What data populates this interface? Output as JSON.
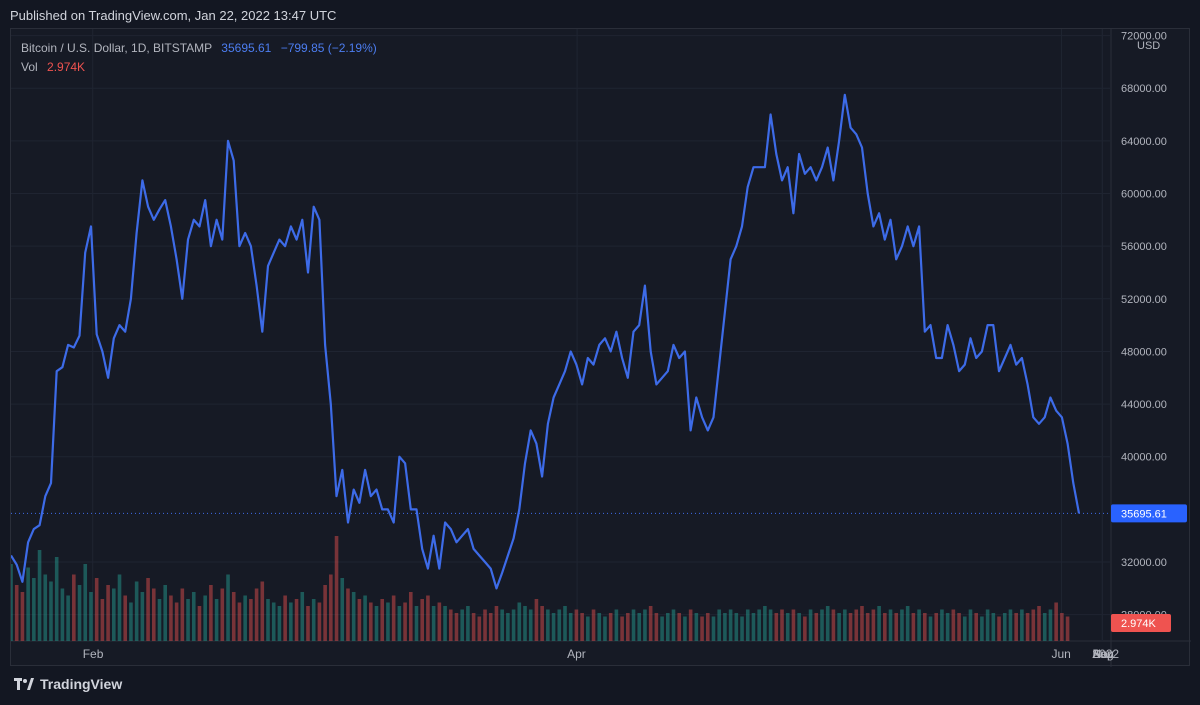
{
  "header": {
    "published": "Published on TradingView.com, Jan 22, 2022 13:47 UTC"
  },
  "legend": {
    "symbol": "Bitcoin / U.S. Dollar, 1D, BITSTAMP",
    "price": "35695.61",
    "change": "−799.85 (−2.19%)",
    "vol_label": "Vol",
    "vol_value": "2.974K"
  },
  "footer": {
    "brand": "TradingView"
  },
  "colors": {
    "line": "#3d6be8",
    "price_tag": "#2962ff",
    "vol_tag": "#ef5350",
    "vol_up": "#26a69a",
    "vol_down": "#ef5350"
  },
  "chart_data": {
    "type": "line",
    "currency": "USD",
    "x_tick_labels": [
      "Feb",
      "Apr",
      "Jun",
      "Aug",
      "Sep",
      "Nov",
      "2022"
    ],
    "y_tick_labels": [
      "72000.00",
      "68000.00",
      "64000.00",
      "60000.00",
      "56000.00",
      "52000.00",
      "48000.00",
      "44000.00",
      "40000.00",
      "32000.00",
      "28000.00"
    ],
    "ylim": [
      26000,
      72500
    ],
    "last_price": 35695.61,
    "last_price_label": "35695.61",
    "last_volume_label": "2.974K",
    "grid": true,
    "series": [
      {
        "values": [
          32500,
          31800,
          30500,
          33500,
          34500,
          34800,
          37000,
          38000,
          46500,
          46800,
          48500,
          48300,
          49200,
          55500,
          57500,
          49300,
          48000,
          46000,
          49000,
          50000,
          49500,
          52000,
          57000,
          61000,
          59000,
          58000,
          58800,
          59500,
          57500,
          55000,
          52000,
          56500,
          58000,
          57500,
          59500,
          56000,
          58000,
          56500,
          64000,
          62500,
          56000,
          57000,
          56000,
          53000,
          49500,
          54500,
          55500,
          56500,
          56000,
          57500,
          56500,
          58000,
          54000,
          59000,
          58000,
          48500,
          44000,
          37000,
          39000,
          35000,
          37500,
          36500,
          39000,
          37000,
          37500,
          36000,
          36000,
          35000,
          40000,
          39500,
          36000,
          36000,
          33000,
          31500,
          34000,
          31500,
          35000,
          34500,
          33500,
          34000,
          34500,
          33000,
          32500,
          32000,
          31500,
          30000,
          31200,
          32500,
          33800,
          36000,
          39500,
          42000,
          41000,
          38500,
          42500,
          44500,
          45500,
          46500,
          48000,
          47000,
          45500,
          47500,
          47000,
          48500,
          49000,
          48000,
          49500,
          47500,
          46000,
          49500,
          50000,
          53000,
          48000,
          45500,
          46000,
          46500,
          48500,
          47500,
          48000,
          42000,
          44500,
          43000,
          42000,
          43000,
          47000,
          51000,
          55000,
          56000,
          57500,
          60500,
          62000,
          62000,
          62000,
          66000,
          63000,
          61000,
          62000,
          58500,
          63000,
          61500,
          62000,
          61000,
          62000,
          63500,
          61000,
          64000,
          67500,
          65000,
          64500,
          63500,
          60000,
          57500,
          58500,
          56500,
          58000,
          55000,
          56000,
          57500,
          56000,
          57500,
          49500,
          50000,
          47500,
          47500,
          50000,
          48500,
          46500,
          47000,
          49000,
          47500,
          48000,
          50000,
          50000,
          46500,
          47500,
          48500,
          47000,
          47500,
          45500,
          43000,
          42500,
          43000,
          44500,
          43500,
          43000,
          41000,
          38000,
          35695.61
        ]
      }
    ],
    "volume": [
      2.2,
      1.6,
      1.4,
      2.1,
      1.8,
      2.6,
      1.9,
      1.7,
      2.4,
      1.5,
      1.3,
      1.9,
      1.6,
      2.2,
      1.4,
      1.8,
      1.2,
      1.6,
      1.5,
      1.9,
      1.3,
      1.1,
      1.7,
      1.4,
      1.8,
      1.5,
      1.2,
      1.6,
      1.3,
      1.1,
      1.5,
      1.2,
      1.4,
      1.0,
      1.3,
      1.6,
      1.2,
      1.5,
      1.9,
      1.4,
      1.1,
      1.3,
      1.2,
      1.5,
      1.7,
      1.2,
      1.1,
      1.0,
      1.3,
      1.1,
      1.2,
      1.4,
      1.0,
      1.2,
      1.1,
      1.6,
      1.9,
      3.0,
      1.8,
      1.5,
      1.4,
      1.2,
      1.3,
      1.1,
      1.0,
      1.2,
      1.1,
      1.3,
      1.0,
      1.1,
      1.4,
      1.0,
      1.2,
      1.3,
      1.0,
      1.1,
      1.0,
      0.9,
      0.8,
      0.9,
      1.0,
      0.8,
      0.7,
      0.9,
      0.8,
      1.0,
      0.9,
      0.8,
      0.9,
      1.1,
      1.0,
      0.9,
      1.2,
      1.0,
      0.9,
      0.8,
      0.9,
      1.0,
      0.8,
      0.9,
      0.8,
      0.7,
      0.9,
      0.8,
      0.7,
      0.8,
      0.9,
      0.7,
      0.8,
      0.9,
      0.8,
      0.9,
      1.0,
      0.8,
      0.7,
      0.8,
      0.9,
      0.8,
      0.7,
      0.9,
      0.8,
      0.7,
      0.8,
      0.7,
      0.9,
      0.8,
      0.9,
      0.8,
      0.7,
      0.9,
      0.8,
      0.9,
      1.0,
      0.9,
      0.8,
      0.9,
      0.8,
      0.9,
      0.8,
      0.7,
      0.9,
      0.8,
      0.9,
      1.0,
      0.9,
      0.8,
      0.9,
      0.8,
      0.9,
      1.0,
      0.8,
      0.9,
      1.0,
      0.8,
      0.9,
      0.8,
      0.9,
      1.0,
      0.8,
      0.9,
      0.8,
      0.7,
      0.8,
      0.9,
      0.8,
      0.9,
      0.8,
      0.7,
      0.9,
      0.8,
      0.7,
      0.9,
      0.8,
      0.7,
      0.8,
      0.9,
      0.8,
      0.9,
      0.8,
      0.9,
      1.0,
      0.8,
      0.9,
      1.1,
      0.8,
      0.7
    ]
  }
}
